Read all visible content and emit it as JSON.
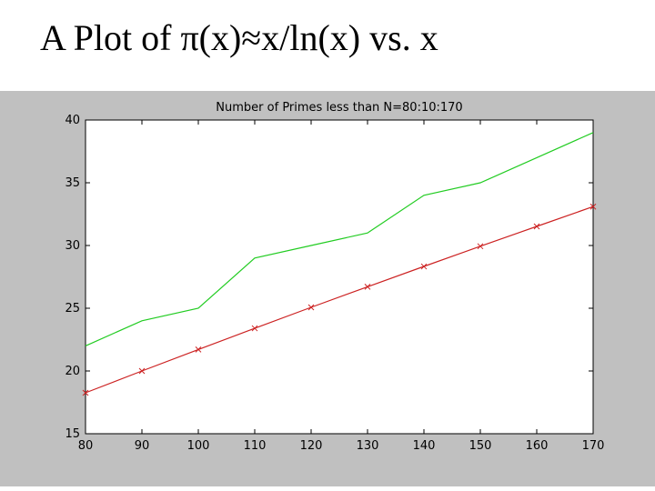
{
  "slide": {
    "title": "A Plot of π(x)≈x/ln(x) vs. x"
  },
  "colors": {
    "figure_background": "#c0c0c0",
    "plot_background": "#ffffff",
    "series_actual": "#22cc22",
    "series_estimate": "#cc2222"
  },
  "chart_data": {
    "type": "line",
    "title": "Number of Primes less than N=80:10:170",
    "xlabel": "",
    "ylabel": "",
    "xlim": [
      80,
      170
    ],
    "ylim": [
      15,
      40
    ],
    "xticks": [
      80,
      90,
      100,
      110,
      120,
      130,
      140,
      150,
      160,
      170
    ],
    "yticks": [
      15,
      20,
      25,
      30,
      35,
      40
    ],
    "grid": false,
    "legend": "none",
    "series": [
      {
        "key": "prime-count",
        "color": "#22cc22",
        "marker": "none",
        "x": [
          80,
          90,
          100,
          110,
          120,
          130,
          140,
          150,
          160,
          170
        ],
        "y": [
          22,
          24,
          25,
          29,
          30,
          31,
          34,
          35,
          37,
          39
        ]
      },
      {
        "key": "x-over-lnx",
        "color": "#cc2222",
        "marker": "x",
        "x": [
          80,
          90,
          100,
          110,
          120,
          130,
          140,
          150,
          160,
          170
        ],
        "y": [
          18.26,
          20.0,
          21.71,
          23.4,
          25.07,
          26.71,
          28.33,
          29.94,
          31.52,
          33.1
        ]
      }
    ]
  }
}
